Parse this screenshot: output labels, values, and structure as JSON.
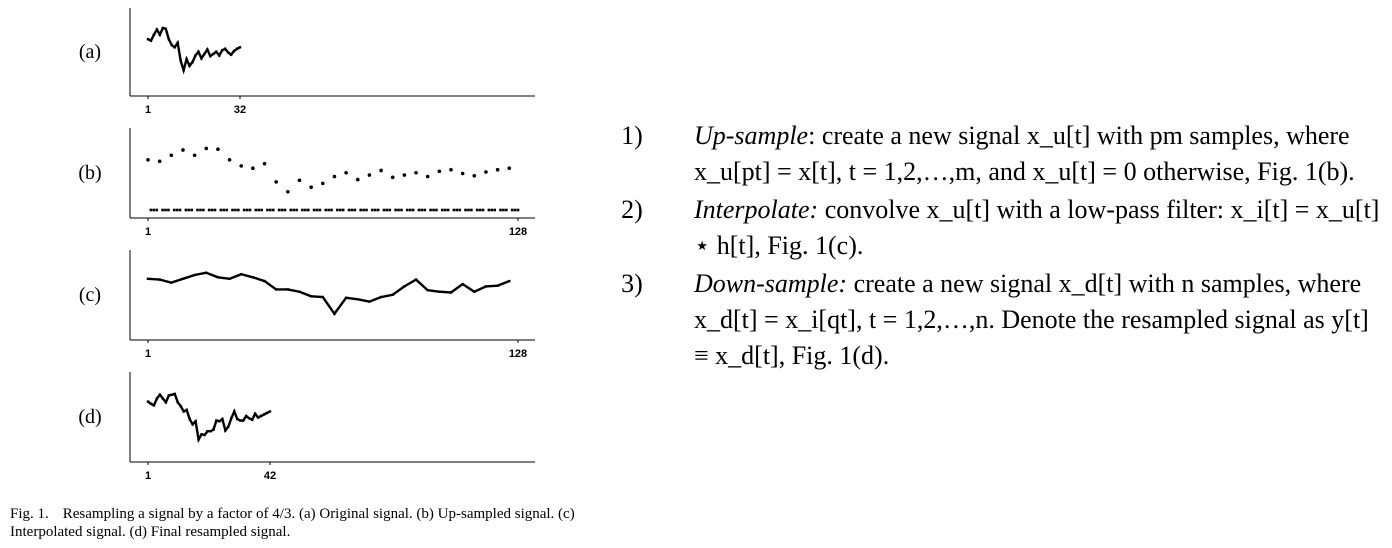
{
  "chart_data": [
    {
      "type": "line",
      "panel_label": "(a)",
      "x_ticks": [
        "1",
        "32"
      ],
      "xlim": [
        1,
        32
      ],
      "ylim": [
        0,
        10
      ],
      "x": [
        1,
        2,
        3,
        4,
        5,
        6,
        7,
        8,
        9,
        10,
        11,
        12,
        13,
        14,
        15,
        16,
        17,
        18,
        19,
        20,
        21,
        22,
        23,
        24,
        25,
        26,
        27,
        28,
        29,
        30,
        31,
        32
      ],
      "values": [
        6.6,
        6.4,
        7.2,
        7.9,
        7.2,
        8.1,
        8.0,
        6.6,
        5.8,
        5.5,
        6.1,
        3.7,
        2.4,
        3.9,
        3.0,
        3.5,
        4.4,
        4.9,
        4.0,
        4.6,
        5.2,
        4.3,
        4.6,
        4.9,
        4.4,
        5.1,
        5.3,
        4.8,
        4.5,
        5.0,
        5.3,
        5.5
      ]
    },
    {
      "type": "scatter",
      "panel_label": "(b)",
      "x_ticks": [
        "1",
        "128"
      ],
      "xlim": [
        1,
        128
      ],
      "ylim": [
        0,
        10
      ],
      "x": [
        1,
        5,
        9,
        13,
        17,
        21,
        25,
        29,
        33,
        37,
        41,
        45,
        49,
        53,
        57,
        61,
        65,
        69,
        73,
        77,
        81,
        85,
        89,
        93,
        97,
        101,
        105,
        109,
        113,
        117,
        121,
        125
      ],
      "values": [
        6.6,
        6.4,
        7.2,
        7.9,
        7.2,
        8.1,
        8.0,
        6.6,
        5.8,
        5.5,
        6.1,
        3.7,
        2.4,
        3.9,
        3.0,
        3.5,
        4.4,
        4.9,
        4.0,
        4.6,
        5.2,
        4.3,
        4.6,
        4.9,
        4.4,
        5.1,
        5.3,
        4.8,
        4.5,
        5.0,
        5.3,
        5.5
      ],
      "zero_samples": "all other samples are 0"
    },
    {
      "type": "line",
      "panel_label": "(c)",
      "x_ticks": [
        "1",
        "128"
      ],
      "xlim": [
        1,
        128
      ],
      "ylim": [
        0,
        10
      ],
      "x": [
        1,
        5,
        9,
        13,
        17,
        21,
        25,
        29,
        33,
        37,
        41,
        45,
        49,
        53,
        57,
        61,
        65,
        69,
        73,
        77,
        81,
        85,
        89,
        93,
        97,
        101,
        105,
        109,
        113,
        117,
        121,
        125
      ],
      "values": [
        7.0,
        6.9,
        6.5,
        7.0,
        7.5,
        7.8,
        7.2,
        7.0,
        7.6,
        7.2,
        6.7,
        5.6,
        5.6,
        5.3,
        4.7,
        4.6,
        2.4,
        4.5,
        4.3,
        4.0,
        4.6,
        4.9,
        6.0,
        6.9,
        5.5,
        5.3,
        5.2,
        6.3,
        5.3,
        6.0,
        6.1,
        6.7
      ]
    },
    {
      "type": "line",
      "panel_label": "(d)",
      "x_ticks": [
        "1",
        "42"
      ],
      "xlim": [
        1,
        42
      ],
      "ylim": [
        0,
        10
      ],
      "x": [
        1,
        2,
        3,
        4,
        5,
        6,
        7,
        8,
        9,
        10,
        11,
        12,
        13,
        14,
        15,
        16,
        17,
        18,
        19,
        20,
        21,
        22,
        23,
        24,
        25,
        26,
        27,
        28,
        29,
        30,
        31,
        32,
        33,
        34,
        35,
        36,
        37,
        38,
        39,
        40,
        41,
        42
      ],
      "values": [
        6.9,
        6.6,
        6.4,
        7.3,
        7.8,
        7.3,
        6.8,
        7.7,
        7.8,
        7.9,
        6.8,
        6.3,
        5.6,
        5.8,
        4.6,
        3.9,
        4.3,
        1.9,
        2.6,
        2.5,
        3.0,
        3.0,
        3.2,
        4.4,
        4.3,
        4.6,
        3.1,
        3.6,
        4.7,
        5.6,
        4.6,
        4.4,
        4.4,
        5.0,
        4.7,
        4.5,
        5.3,
        4.8,
        5.0,
        5.2,
        5.4,
        5.6
      ]
    }
  ],
  "caption": {
    "fig_num": "Fig. 1.",
    "text": "Resampling a signal by a factor of 4/3. (a) Original signal. (b) Up-sampled signal. (c) Interpolated signal. (d) Final resampled signal."
  },
  "steps": [
    {
      "num": "1)",
      "term": "Up-sample",
      "text": ": create a new signal x_u[t] with pm samples, where x_u[pt] = x[t], t = 1,2,…,m, and x_u[t] = 0 otherwise, Fig. 1(b)."
    },
    {
      "num": "2)",
      "term": "Interpolate:",
      "text": " convolve x_u[t] with a low-pass filter: x_i[t] = x_u[t] ⋆ h[t], Fig. 1(c)."
    },
    {
      "num": "3)",
      "term": "Down-sample:",
      "text": " create a new signal x_d[t] with n samples, where x_d[t] = x_i[qt], t = 1,2,…,n. Denote the resampled signal as y[t] ≡ x_d[t], Fig. 1(d)."
    }
  ]
}
